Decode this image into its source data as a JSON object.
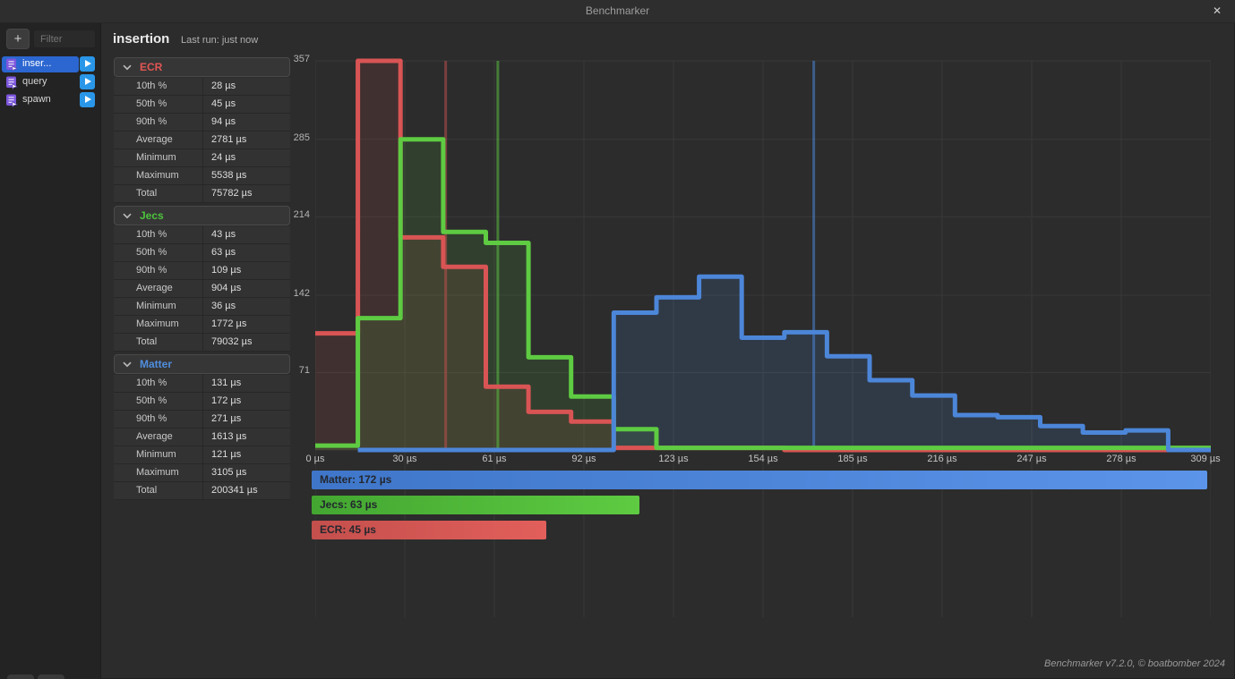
{
  "window": {
    "title": "Benchmarker",
    "close_label": "✕"
  },
  "sidebar": {
    "add_label": "+",
    "filter_placeholder": "Filter",
    "items": [
      {
        "label": "inser...",
        "selected": true
      },
      {
        "label": "query",
        "selected": false
      },
      {
        "label": "spawn",
        "selected": false
      }
    ]
  },
  "header": {
    "title": "insertion",
    "last_run": "Last run: just now"
  },
  "stats_sections": [
    {
      "name": "ECR",
      "color": "#e25555",
      "rows": [
        [
          "10th %",
          "28 µs"
        ],
        [
          "50th %",
          "45 µs"
        ],
        [
          "90th %",
          "94 µs"
        ],
        [
          "Average",
          "2781 µs"
        ],
        [
          "Minimum",
          "24 µs"
        ],
        [
          "Maximum",
          "5538 µs"
        ],
        [
          "Total",
          "75782 µs"
        ]
      ]
    },
    {
      "name": "Jecs",
      "color": "#4cc43c",
      "rows": [
        [
          "10th %",
          "43 µs"
        ],
        [
          "50th %",
          "63 µs"
        ],
        [
          "90th %",
          "109 µs"
        ],
        [
          "Average",
          "904 µs"
        ],
        [
          "Minimum",
          "36 µs"
        ],
        [
          "Maximum",
          "1772 µs"
        ],
        [
          "Total",
          "79032 µs"
        ]
      ]
    },
    {
      "name": "Matter",
      "color": "#4f8ede",
      "rows": [
        [
          "10th %",
          "131 µs"
        ],
        [
          "50th %",
          "172 µs"
        ],
        [
          "90th %",
          "271 µs"
        ],
        [
          "Average",
          "1613 µs"
        ],
        [
          "Minimum",
          "121 µs"
        ],
        [
          "Maximum",
          "3105 µs"
        ],
        [
          "Total",
          "200341 µs"
        ]
      ]
    }
  ],
  "chart_data": {
    "type": "histogram-step",
    "x_unit": "µs",
    "x_range": [
      0,
      309
    ],
    "y_range": [
      0,
      357
    ],
    "bin_width_us": 14.714,
    "grid": true,
    "x_ticks": [
      "0 µs",
      "30 µs",
      "61 µs",
      "92 µs",
      "123 µs",
      "154 µs",
      "185 µs",
      "216 µs",
      "247 µs",
      "278 µs",
      "309 µs"
    ],
    "y_ticks": [
      357,
      285,
      214,
      142,
      71
    ],
    "series": [
      {
        "name": "ECR",
        "color": "#d95454",
        "fill": "rgba(217,84,84,0.12)",
        "marker_color": "rgba(217,84,84,0.45)",
        "median_us": 45,
        "start_bin": 0,
        "counts": [
          107,
          357,
          195,
          168,
          58,
          35,
          26,
          2,
          2,
          2,
          2,
          0,
          0,
          0,
          0,
          0,
          0,
          0,
          0,
          0,
          0
        ]
      },
      {
        "name": "Jecs",
        "color": "#5ecb42",
        "fill": "rgba(94,203,66,0.12)",
        "marker_color": "rgba(94,203,66,0.5)",
        "median_us": 63,
        "start_bin": 0,
        "counts": [
          4,
          121,
          285,
          200,
          190,
          85,
          49,
          19,
          2,
          2,
          2,
          2,
          2,
          2,
          2,
          2,
          2,
          2,
          2,
          2,
          2
        ]
      },
      {
        "name": "Matter",
        "color": "#4c86d9",
        "fill": "rgba(76,134,217,0.16)",
        "marker_color": "rgba(76,134,217,0.55)",
        "median_us": 172,
        "start_bin": 1,
        "counts": [
          0,
          0,
          0,
          0,
          0,
          0,
          0,
          126,
          140,
          159,
          103,
          108,
          86,
          64,
          50,
          32,
          30,
          22,
          16,
          18,
          0
        ]
      }
    ]
  },
  "median_bars": [
    {
      "label": "Matter: 172 µs",
      "value_us": 172,
      "color_from": "#3f76c9",
      "color_to": "#5b94e9"
    },
    {
      "label": "Jecs: 63 µs",
      "value_us": 63,
      "color_from": "#43a631",
      "color_to": "#5ecb42"
    },
    {
      "label": "ECR: 45 µs",
      "value_us": 45,
      "color_from": "#c44f4c",
      "color_to": "#e25f5b"
    }
  ],
  "footer": {
    "settings_glyph": "⚙",
    "icons": [
      "gear-icon",
      "book-icon"
    ],
    "credit": "Benchmarker v7.2.0, © boatbomber 2024"
  }
}
